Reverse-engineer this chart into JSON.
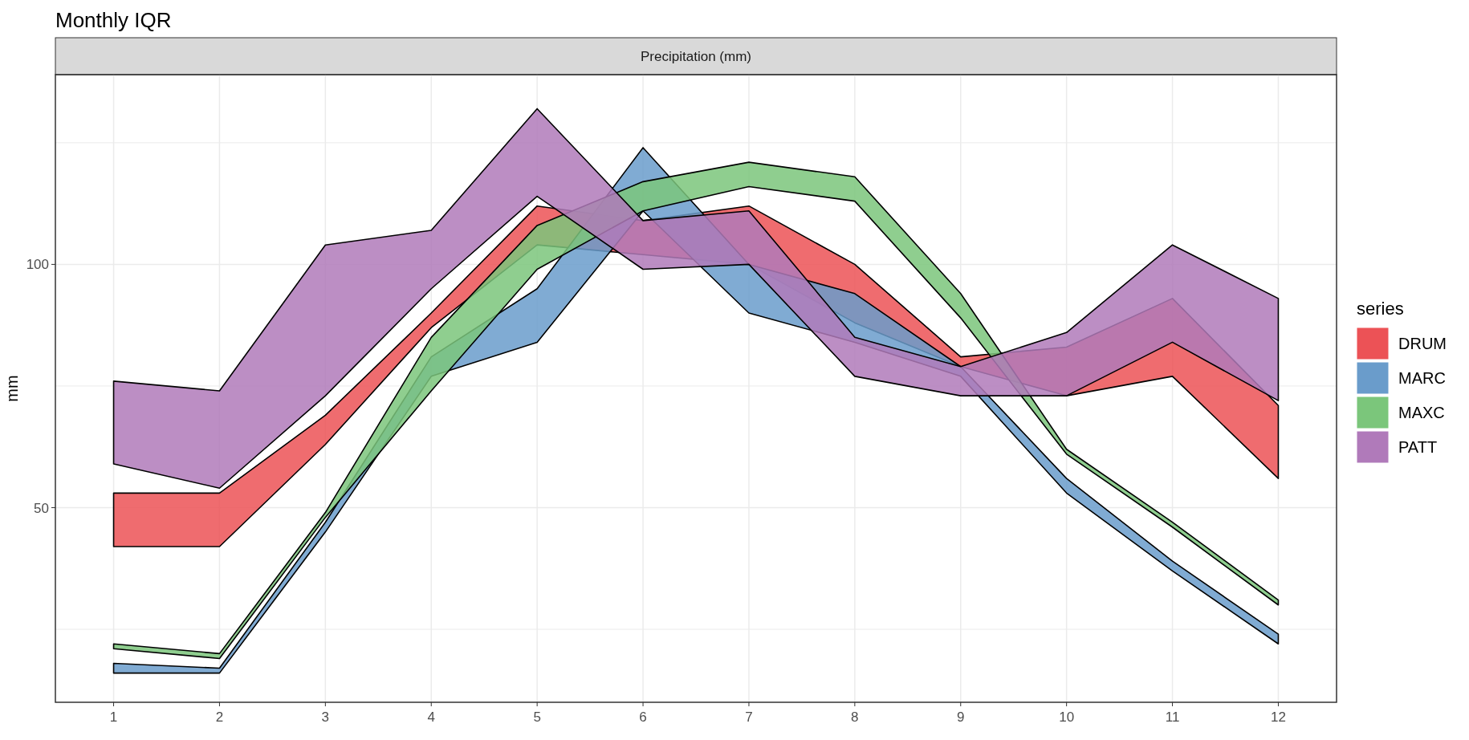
{
  "chart_data": {
    "type": "area",
    "title": "Monthly IQR",
    "subtitle": "Precipitation (mm)",
    "ylabel": "mm",
    "legend_title": "series",
    "legend": "right",
    "grid": true,
    "x": [
      1,
      2,
      3,
      4,
      5,
      6,
      7,
      8,
      9,
      10,
      11,
      12
    ],
    "xlim": [
      0.45,
      12.55
    ],
    "xticks": [
      1,
      2,
      3,
      4,
      5,
      6,
      7,
      8,
      9,
      10,
      11,
      12
    ],
    "ylim": [
      10,
      139
    ],
    "yticks": [
      {
        "value": 25,
        "label": null
      },
      50,
      {
        "value": 75,
        "label": null
      },
      100,
      {
        "value": 125,
        "label": null
      }
    ],
    "series": [
      {
        "name": "DRUM",
        "color": "#ec5256",
        "values": [
          null,
          null,
          null,
          null,
          null,
          null,
          null,
          null,
          null,
          null,
          null,
          null
        ],
        "lower": [
          42,
          42,
          63,
          87,
          104,
          102,
          100,
          88,
          79,
          73,
          77,
          56
        ],
        "upper": [
          53,
          53,
          69,
          90,
          112,
          109,
          112,
          100,
          81,
          83,
          93,
          71
        ]
      },
      {
        "name": "MARC",
        "color": "#6a9ccb",
        "values": [
          null,
          null,
          null,
          null,
          null,
          null,
          null,
          null,
          null,
          null,
          null,
          null
        ],
        "lower": [
          16,
          16,
          45,
          77,
          84,
          111,
          90,
          84,
          77,
          53,
          37,
          22
        ],
        "upper": [
          18,
          17,
          47,
          81,
          95,
          124,
          100,
          94,
          79,
          56,
          39,
          24
        ]
      },
      {
        "name": "MAXC",
        "color": "#7bc67b",
        "values": [
          null,
          null,
          null,
          null,
          null,
          null,
          null,
          null,
          null,
          null,
          null,
          null
        ],
        "lower": [
          21,
          19,
          48,
          74,
          99,
          111,
          116,
          113,
          89,
          61,
          46,
          30
        ],
        "upper": [
          22,
          20,
          49,
          85,
          108,
          117,
          121,
          118,
          94,
          62,
          47,
          31
        ]
      },
      {
        "name": "PATT",
        "color": "#b07aba",
        "values": [
          null,
          null,
          null,
          null,
          null,
          null,
          null,
          null,
          null,
          null,
          null,
          null
        ],
        "lower": [
          59,
          54,
          73,
          95,
          114,
          99,
          100,
          77,
          73,
          73,
          84,
          72
        ],
        "upper": [
          76,
          74,
          104,
          107,
          132,
          109,
          111,
          85,
          79,
          86,
          104,
          93
        ]
      }
    ]
  }
}
